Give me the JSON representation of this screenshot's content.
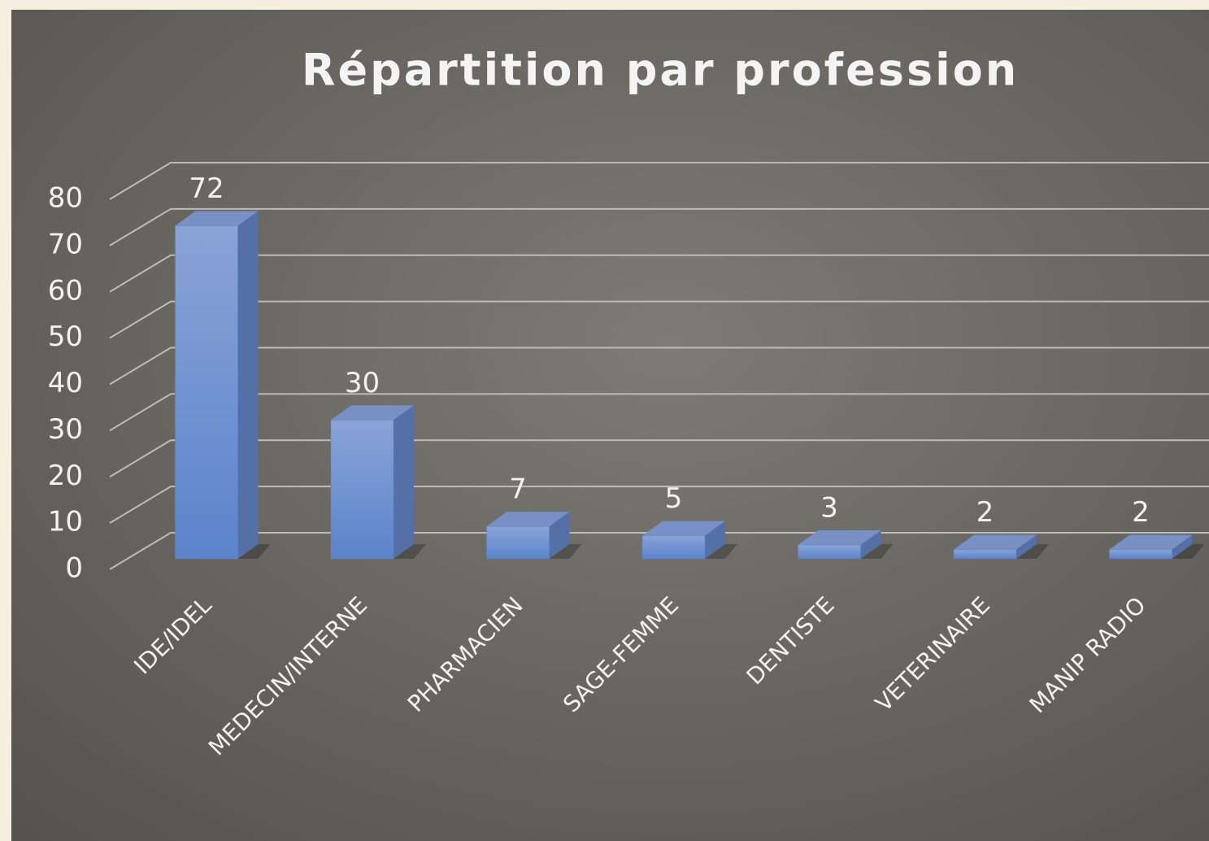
{
  "chart_data": {
    "type": "bar",
    "title": "Répartition par profession",
    "categories": [
      "IDE/IDEL",
      "MEDECIN/INTERNE",
      "PHARMACIEN",
      "SAGE-FEMME",
      "DENTISTE",
      "VETERINAIRE",
      "MANIP RADIO"
    ],
    "values": [
      72,
      30,
      7,
      5,
      3,
      2,
      2
    ],
    "color": "#5b84cc",
    "ylim": [
      0,
      80
    ],
    "yticks": [
      0,
      10,
      20,
      30,
      40,
      50,
      60,
      70,
      80
    ],
    "grid": true
  }
}
